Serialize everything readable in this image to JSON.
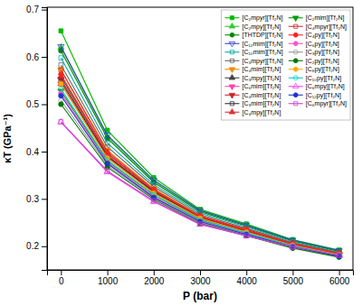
{
  "chart_data": {
    "type": "line",
    "x": [
      0,
      1000,
      2000,
      3000,
      4000,
      5000,
      6000
    ],
    "xlabel": "P (bar)",
    "ylabel": "κT (GPa⁻¹)",
    "xlim": [
      -300,
      6300
    ],
    "ylim": [
      0.15,
      0.705
    ],
    "xticks": [
      0,
      1000,
      2000,
      3000,
      4000,
      5000,
      6000
    ],
    "yticks": [
      0.2,
      0.3,
      0.4,
      0.5,
      0.6,
      0.7
    ],
    "grid": false,
    "legend": "upper right",
    "series": [
      {
        "name": "[C₂mpyr][Tf₂N]",
        "color": "#00bb00",
        "marker": "square",
        "values": [
          0.655,
          0.445,
          0.345,
          0.278,
          0.247,
          0.214,
          0.192
        ]
      },
      {
        "name": "[C₂mpy][Tf₂N]",
        "color": "#33cc33",
        "marker": "triangle-up",
        "values": [
          0.62,
          0.432,
          0.338,
          0.275,
          0.244,
          0.212,
          0.19
        ]
      },
      {
        "name": "[THTDP][Tf₂N]",
        "color": "#008800",
        "marker": "circle",
        "values": [
          0.613,
          0.428,
          0.335,
          0.273,
          0.243,
          0.211,
          0.189
        ]
      },
      {
        "name": "[C₁₂mim][Tf₂N]",
        "color": "#3344cc",
        "marker": "triangle-down-open",
        "values": [
          0.622,
          0.435,
          0.34,
          0.276,
          0.245,
          0.213,
          0.191
        ]
      },
      {
        "name": "[C₁₀mim][Tf₂N]",
        "color": "#00aaaa",
        "marker": "square-open",
        "values": [
          0.598,
          0.418,
          0.33,
          0.27,
          0.241,
          0.209,
          0.187
        ]
      },
      {
        "name": "[C₃mpyr][Tf₂N]",
        "color": "#666666",
        "marker": "square-open",
        "values": [
          0.583,
          0.41,
          0.326,
          0.267,
          0.238,
          0.207,
          0.186
        ]
      },
      {
        "name": "[C₄mim][Tf₂N]",
        "color": "#ff8800",
        "marker": "triangle-down",
        "values": [
          0.573,
          0.403,
          0.322,
          0.264,
          0.235,
          0.205,
          0.184
        ]
      },
      {
        "name": "[C₃mpy][Tf₂N]",
        "color": "#444444",
        "marker": "triangle-up",
        "values": [
          0.558,
          0.396,
          0.318,
          0.262,
          0.233,
          0.204,
          0.183
        ]
      },
      {
        "name": "[C₆mim][Tf₂N]",
        "color": "#ff44aa",
        "marker": "triangle-down",
        "values": [
          0.543,
          0.388,
          0.314,
          0.259,
          0.231,
          0.202,
          0.182
        ]
      },
      {
        "name": "[C₄mim][Tf₂N]",
        "color": "#cc2222",
        "marker": "triangle-down",
        "values": [
          0.553,
          0.392,
          0.316,
          0.261,
          0.232,
          0.203,
          0.182
        ]
      },
      {
        "name": "[C₃mim][Tf₂N]",
        "color": "#333333",
        "marker": "square-open",
        "values": [
          0.548,
          0.39,
          0.315,
          0.26,
          0.231,
          0.202,
          0.181
        ]
      },
      {
        "name": "[C₄mpy][Tf₂N]",
        "color": "#dd3333",
        "marker": "triangle-up",
        "values": [
          0.543,
          0.387,
          0.312,
          0.258,
          0.23,
          0.201,
          0.181
        ]
      },
      {
        "name": "[C₂mim][Tf₂N]",
        "color": "#009900",
        "marker": "triangle-down",
        "values": [
          0.528,
          0.38,
          0.308,
          0.255,
          0.227,
          0.199,
          0.179
        ]
      },
      {
        "name": "[C₄mpyr][Tf₂N]",
        "color": "#cc3333",
        "marker": "square-open",
        "values": [
          0.572,
          0.4,
          0.32,
          0.264,
          0.236,
          0.206,
          0.185
        ]
      },
      {
        "name": "[C₄py][Tf₂N]",
        "color": "#ff2222",
        "marker": "circle",
        "values": [
          0.563,
          0.396,
          0.318,
          0.263,
          0.234,
          0.205,
          0.184
        ]
      },
      {
        "name": "[C₆py][Tf₂N]",
        "color": "#ff55cc",
        "marker": "circle",
        "values": [
          0.523,
          0.377,
          0.305,
          0.253,
          0.226,
          0.199,
          0.18
        ]
      },
      {
        "name": "[C₃py][Tf₂N]",
        "color": "#999999",
        "marker": "circle-open",
        "values": [
          0.508,
          0.371,
          0.301,
          0.25,
          0.223,
          0.197,
          0.178
        ]
      },
      {
        "name": "[C₂py][Tf₂N]",
        "color": "#007700",
        "marker": "circle",
        "values": [
          0.5,
          0.367,
          0.299,
          0.248,
          0.222,
          0.196,
          0.177
        ]
      },
      {
        "name": "[C₈py][Tf₂N]",
        "color": "#ffaa00",
        "marker": "circle",
        "values": [
          0.543,
          0.386,
          0.312,
          0.259,
          0.23,
          0.202,
          0.182
        ]
      },
      {
        "name": "[C₁₀py][Tf₂N]",
        "color": "#00cccc",
        "marker": "circle-open",
        "values": [
          0.533,
          0.382,
          0.309,
          0.256,
          0.228,
          0.201,
          0.181
        ]
      },
      {
        "name": "[C₆mpy][Tf₂N]",
        "color": "#ee44ee",
        "marker": "triangle-up-open",
        "values": [
          0.462,
          0.357,
          0.294,
          0.246,
          0.222,
          0.198,
          0.18
        ]
      },
      {
        "name": "[C₁₂py][Tf₂N]",
        "color": "#2233cc",
        "marker": "circle",
        "values": [
          0.518,
          0.375,
          0.303,
          0.252,
          0.225,
          0.199,
          0.179
        ]
      },
      {
        "name": "[C₆mpyr][Tf₂N]",
        "color": "#cc44cc",
        "marker": "square-open",
        "values": [
          0.463,
          0.359,
          0.296,
          0.247,
          0.222,
          0.199,
          0.181
        ]
      }
    ]
  }
}
